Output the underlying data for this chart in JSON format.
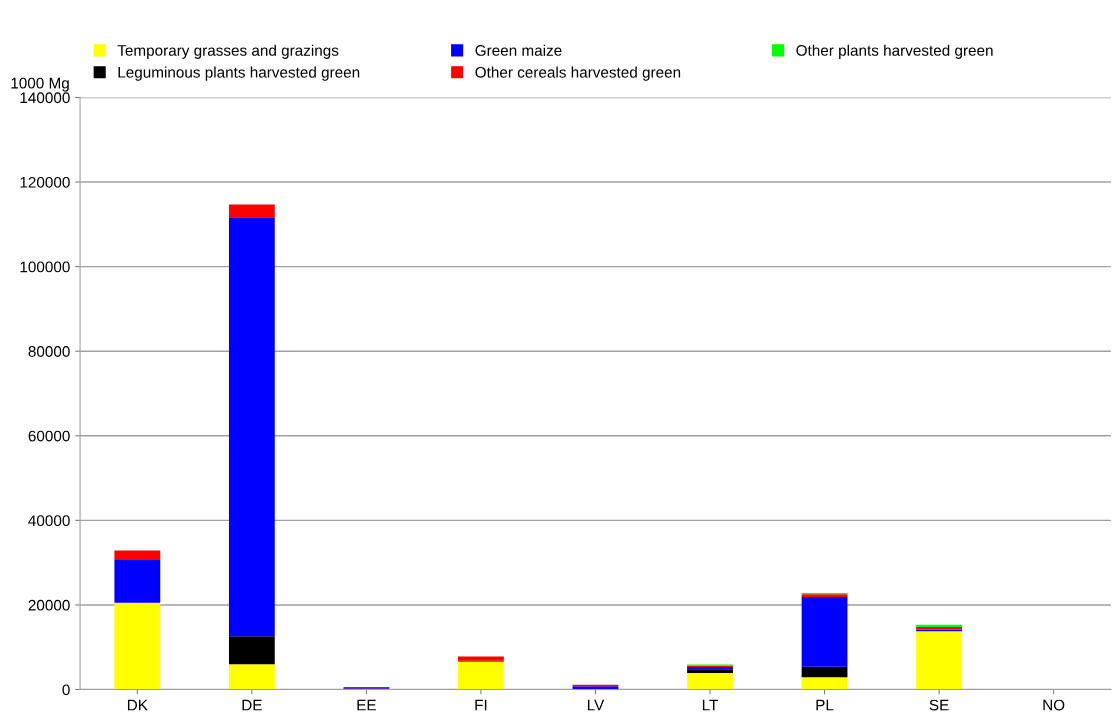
{
  "chart_data": {
    "type": "bar",
    "stacked": true,
    "ylabel": "1000 Mg",
    "categories": [
      "DK",
      "DE",
      "EE",
      "FI",
      "LV",
      "LT",
      "PL",
      "SE",
      "NO"
    ],
    "series": [
      {
        "name": "Temporary grasses and grazings",
        "color": "#ffff00",
        "values": [
          20500,
          6000,
          0,
          6600,
          0,
          3900,
          2900,
          13800,
          0
        ]
      },
      {
        "name": "Leguminous plants harvested green",
        "color": "#000000",
        "values": [
          0,
          6600,
          0,
          200,
          0,
          900,
          2500,
          null,
          0
        ]
      },
      {
        "name": "Green maize",
        "color": "#0000ff",
        "values": [
          10100,
          99100,
          300,
          0,
          800,
          500,
          16500,
          400,
          0
        ]
      },
      {
        "name": "Other cereals harvested green",
        "color": "#ff0000",
        "values": [
          2300,
          3000,
          300,
          1000,
          300,
          300,
          600,
          600,
          0
        ]
      },
      {
        "name": "Other plants harvested green",
        "color": "#00ff00",
        "values": [
          0,
          0,
          0,
          0,
          0,
          300,
          300,
          500,
          0
        ]
      }
    ],
    "ylim": [
      0,
      140000
    ],
    "yticks": [
      0,
      20000,
      40000,
      60000,
      80000,
      100000,
      120000,
      140000
    ],
    "grid": "y",
    "legend": "top"
  }
}
